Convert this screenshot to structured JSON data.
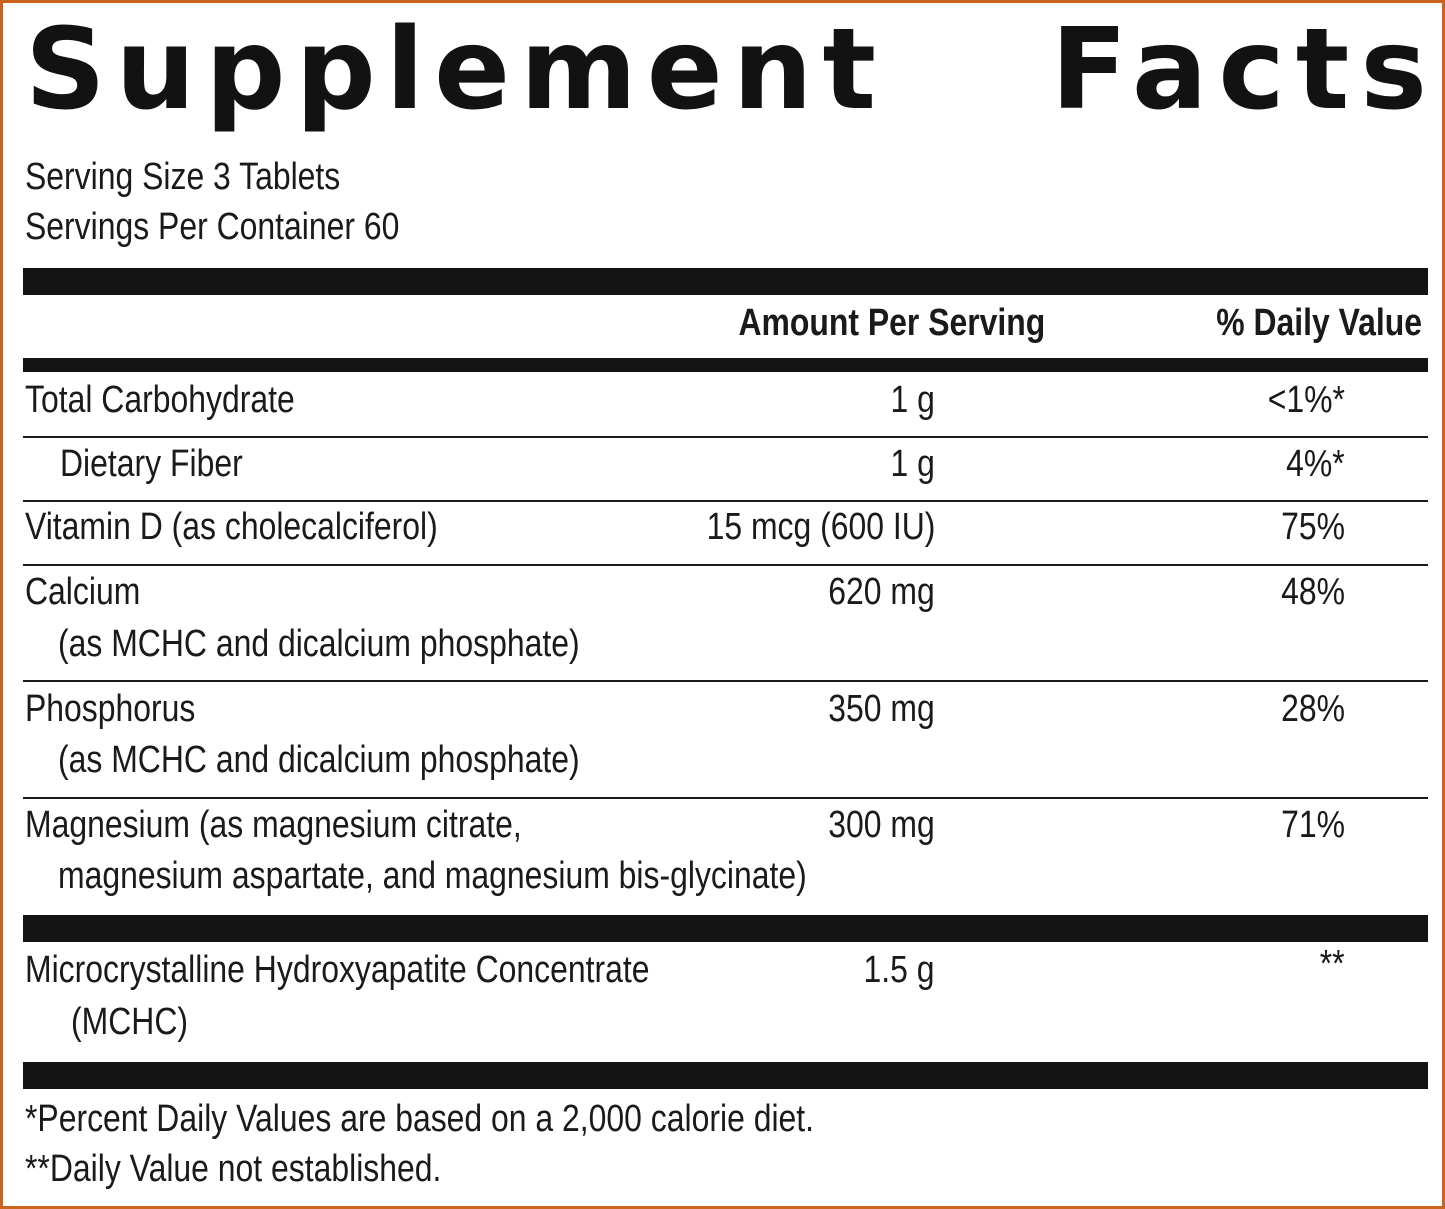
{
  "title": {
    "word1": "Supplement",
    "word2": "Facts"
  },
  "serving": {
    "size": "Serving Size 3 Tablets",
    "per_container": "Servings Per Container 60"
  },
  "headers": {
    "amount": "Amount Per Serving",
    "dv": "% Daily Value"
  },
  "rows": [
    {
      "name": "Total Carbohydrate",
      "amount": "1 g",
      "dv": "<1%*"
    },
    {
      "name": "Dietary Fiber",
      "amount": "1 g",
      "dv": "4%*"
    },
    {
      "name": "Vitamin D (as cholecalciferol)",
      "amount": "15 mcg (600 IU)",
      "dv": "75%"
    },
    {
      "name": "Calcium",
      "sub": "(as MCHC and dicalcium phosphate)",
      "amount": "620 mg",
      "dv": "48%"
    },
    {
      "name": "Phosphorus",
      "sub": "(as MCHC and dicalcium phosphate)",
      "amount": "350 mg",
      "dv": "28%"
    },
    {
      "name": "Magnesium (as magnesium citrate,",
      "sub": "magnesium aspartate, and magnesium bis-glycinate)",
      "amount": "300 mg",
      "dv": "71%"
    },
    {
      "name": "Microcrystalline Hydroxyapatite Concentrate",
      "sub": "(MCHC)",
      "amount": "1.5 g",
      "dv": "**"
    }
  ],
  "footnotes": [
    "*Percent Daily Values are based on a 2,000 calorie diet.",
    "**Daily Value not established."
  ],
  "colors": {
    "border": "#c8641e",
    "ink": "#141414",
    "background": "#ffffff"
  }
}
